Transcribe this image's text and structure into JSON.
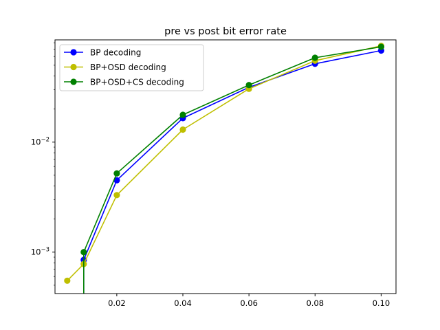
{
  "chart_data": {
    "type": "line",
    "title": "pre vs post bit error rate",
    "xlabel": "",
    "ylabel": "",
    "xlim": [
      0.0013,
      0.1045
    ],
    "ylim": [
      0.00042,
      0.085
    ],
    "yscale": "log",
    "grid": false,
    "legend_position": "upper-left",
    "x_ticks": [
      {
        "value": 0.02,
        "label": "0.02"
      },
      {
        "value": 0.04,
        "label": "0.04"
      },
      {
        "value": 0.06,
        "label": "0.06"
      },
      {
        "value": 0.08,
        "label": "0.08"
      },
      {
        "value": 0.1,
        "label": "0.10"
      }
    ],
    "y_ticks": [
      {
        "value": 0.001,
        "base": "10",
        "exp": "−3"
      },
      {
        "value": 0.01,
        "base": "10",
        "exp": "−2"
      }
    ],
    "series": [
      {
        "name": "BP decoding",
        "color": "#0000ff",
        "marker": "circle",
        "points": [
          [
            0.01,
            0.00085
          ],
          [
            0.02,
            0.0045
          ],
          [
            0.04,
            0.0165
          ],
          [
            0.06,
            0.0315
          ],
          [
            0.08,
            0.0515
          ],
          [
            0.1,
            0.068
          ]
        ],
        "drop_to_zero_at": 0.01
      },
      {
        "name": "BP+OSD decoding",
        "color": "#bfbf00",
        "marker": "circle",
        "points": [
          [
            0.005,
            0.00055
          ],
          [
            0.01,
            0.00078
          ],
          [
            0.02,
            0.0033
          ],
          [
            0.04,
            0.013
          ],
          [
            0.06,
            0.0305
          ],
          [
            0.08,
            0.055
          ],
          [
            0.1,
            0.075
          ]
        ]
      },
      {
        "name": "BP+OSD+CS decoding",
        "color": "#008000",
        "marker": "circle",
        "points": [
          [
            0.01,
            0.001
          ],
          [
            0.02,
            0.0052
          ],
          [
            0.04,
            0.0177
          ],
          [
            0.06,
            0.033
          ],
          [
            0.08,
            0.0585
          ],
          [
            0.1,
            0.0735
          ]
        ],
        "drop_to_zero_at": 0.01
      }
    ]
  }
}
